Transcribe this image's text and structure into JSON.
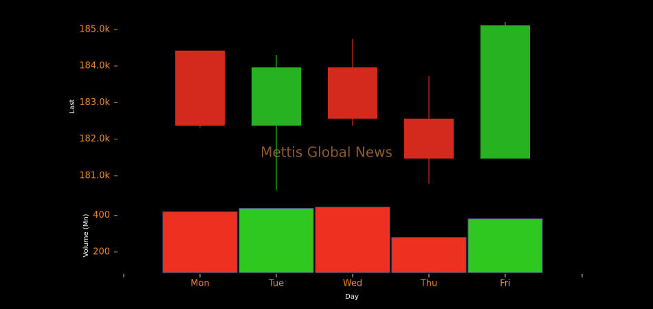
{
  "chart_data": {
    "type": "candlestick",
    "watermark": "Mettis Global News",
    "xlabel": "Day",
    "ylabel": "Last",
    "categories": [
      "Mon",
      "Tue",
      "Wed",
      "Thu",
      "Fri"
    ],
    "open": [
      184420,
      182370,
      183960,
      182560,
      181470
    ],
    "high": [
      184420,
      184300,
      184740,
      183720,
      185200
    ],
    "low": [
      182320,
      180600,
      182370,
      180780,
      181470
    ],
    "close": [
      182370,
      183960,
      182560,
      181470,
      185110
    ],
    "up_color": "#27b321",
    "down_color": "#d42a1e",
    "ylim": [
      180360,
      185240
    ],
    "yticks": [
      {
        "value": 181000,
        "label": "181.0k"
      },
      {
        "value": 182000,
        "label": "182.0k"
      },
      {
        "value": 183000,
        "label": "183.0k"
      },
      {
        "value": 184000,
        "label": "184.0k"
      },
      {
        "value": 185000,
        "label": "185.0k"
      }
    ],
    "volume": {
      "ylabel": "Volume (Mn)",
      "values": [
        419,
        438,
        445,
        279,
        381
      ],
      "up_color": "#2ec820",
      "down_color": "#ee3020",
      "ylim": [
        87,
        470
      ],
      "yticks": [
        200,
        400
      ]
    }
  }
}
